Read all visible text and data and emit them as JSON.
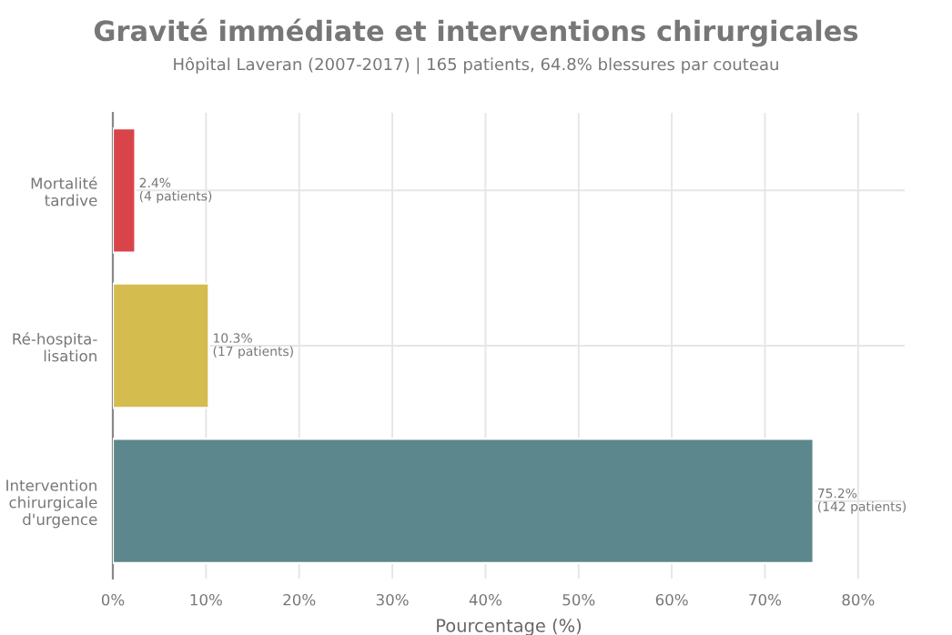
{
  "chart_data": {
    "type": "bar",
    "orientation": "horizontal",
    "title": "Gravité immédiate et interventions chirurgicales",
    "subtitle": "Hôpital Laveran (2007-2017) | 165 patients, 64.8% blessures par couteau",
    "xlabel": "Pourcentage (%)",
    "categories": [
      "Mortalité\ntardive",
      "Ré-hospita-\nlisation",
      "Intervention\nchirurgicale\nd'urgence"
    ],
    "values": [
      2.4,
      10.3,
      75.2
    ],
    "colors": [
      "#d9444a",
      "#d4bc4e",
      "#5c878c"
    ],
    "value_labels": [
      "2.4%\n(4 patients)",
      "10.3%\n(17 patients)",
      "75.2%\n(142 patients)"
    ],
    "xlim": [
      0,
      85
    ],
    "xticks": [
      {
        "value": 0,
        "label": "0%"
      },
      {
        "value": 10,
        "label": "10%"
      },
      {
        "value": 20,
        "label": "20%"
      },
      {
        "value": 30,
        "label": "30%"
      },
      {
        "value": 40,
        "label": "40%"
      },
      {
        "value": 50,
        "label": "50%"
      },
      {
        "value": 60,
        "label": "60%"
      },
      {
        "value": 70,
        "label": "70%"
      },
      {
        "value": 80,
        "label": "80%"
      }
    ],
    "grid": true
  }
}
